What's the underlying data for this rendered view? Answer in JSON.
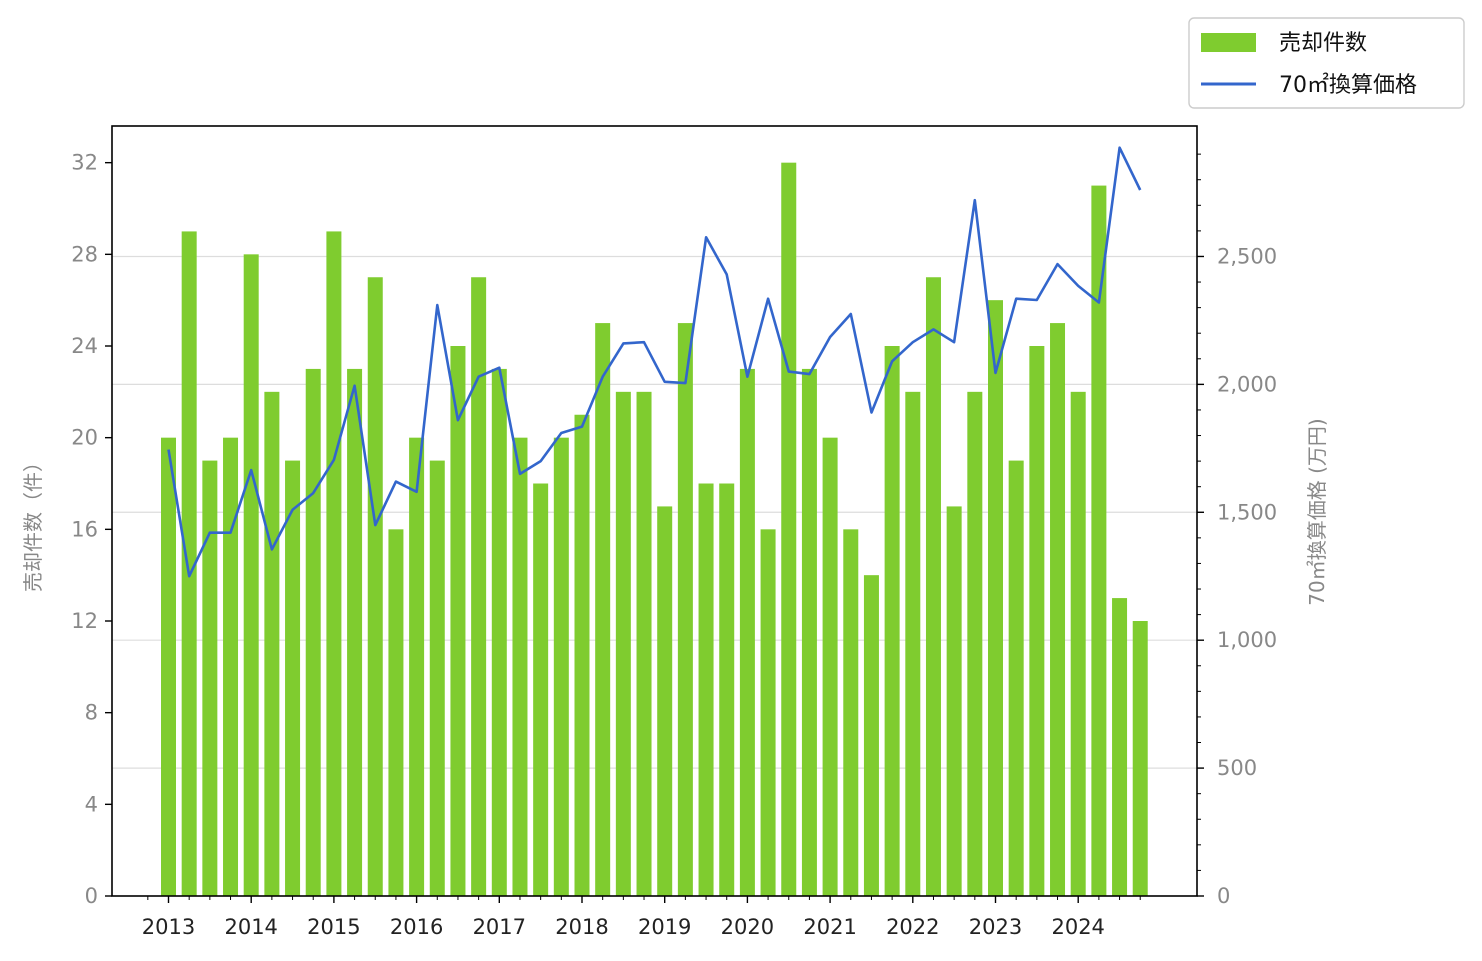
{
  "chart_data": {
    "type": "bar",
    "colors": {
      "bar": "#7fcc2f",
      "line": "#3366cc",
      "grid": "#dddddd"
    },
    "x": [
      2013.0,
      2013.25,
      2013.5,
      2013.75,
      2014.0,
      2014.25,
      2014.5,
      2014.75,
      2015.0,
      2015.25,
      2015.5,
      2015.75,
      2016.0,
      2016.25,
      2016.5,
      2016.75,
      2017.0,
      2017.25,
      2017.5,
      2017.75,
      2018.0,
      2018.25,
      2018.5,
      2018.75,
      2019.0,
      2019.25,
      2019.5,
      2019.75,
      2020.0,
      2020.25,
      2020.5,
      2020.75,
      2021.0,
      2021.25,
      2021.5,
      2021.75,
      2022.0,
      2022.25,
      2022.5,
      2022.75,
      2023.0,
      2023.25,
      2023.5,
      2023.75,
      2024.0,
      2024.25,
      2024.5,
      2024.75
    ],
    "x_ticks": [
      "2013",
      "2014",
      "2015",
      "2016",
      "2017",
      "2018",
      "2019",
      "2020",
      "2021",
      "2022",
      "2023",
      "2024"
    ],
    "series": [
      {
        "name": "売却件数",
        "type": "bar",
        "axis": "left",
        "values": [
          20,
          29,
          19,
          20,
          28,
          22,
          19,
          23,
          29,
          23,
          27,
          16,
          20,
          19,
          24,
          27,
          23,
          20,
          18,
          20,
          21,
          25,
          22,
          22,
          17,
          25,
          18,
          18,
          23,
          16,
          32,
          23,
          20,
          16,
          14,
          24,
          22,
          27,
          17,
          22,
          26,
          19,
          24,
          25,
          22,
          31,
          13,
          12
        ]
      },
      {
        "name": "70㎡換算価格",
        "type": "line",
        "axis": "right",
        "values": [
          1745,
          1250,
          1420,
          1420,
          1665,
          1355,
          1510,
          1575,
          1705,
          1995,
          1450,
          1620,
          1580,
          2310,
          1860,
          2030,
          2065,
          1650,
          1700,
          1810,
          1835,
          2030,
          2160,
          2165,
          2010,
          2005,
          2575,
          2430,
          2030,
          2335,
          2050,
          2040,
          2185,
          2275,
          1890,
          2090,
          2165,
          2215,
          2165,
          2720,
          2045,
          2335,
          2330,
          2470,
          2385,
          2320,
          2925,
          2760
        ]
      }
    ],
    "ylabel_left": "売却件数（件）",
    "ylabel_right": "70㎡換算価格 (万円)",
    "ylim_left": [
      0,
      33.6
    ],
    "ylim_right": [
      0,
      3010
    ],
    "yticks_left": [
      "0",
      "4",
      "8",
      "12",
      "16",
      "20",
      "24",
      "28",
      "32"
    ],
    "yticks_right": [
      "0",
      "500",
      "1,000",
      "1,500",
      "2,000",
      "2,500"
    ],
    "grid": "horizontal, right axis",
    "legend": {
      "position": "top-right, outside plot",
      "entries": [
        "売却件数",
        "70㎡換算価格"
      ]
    }
  }
}
